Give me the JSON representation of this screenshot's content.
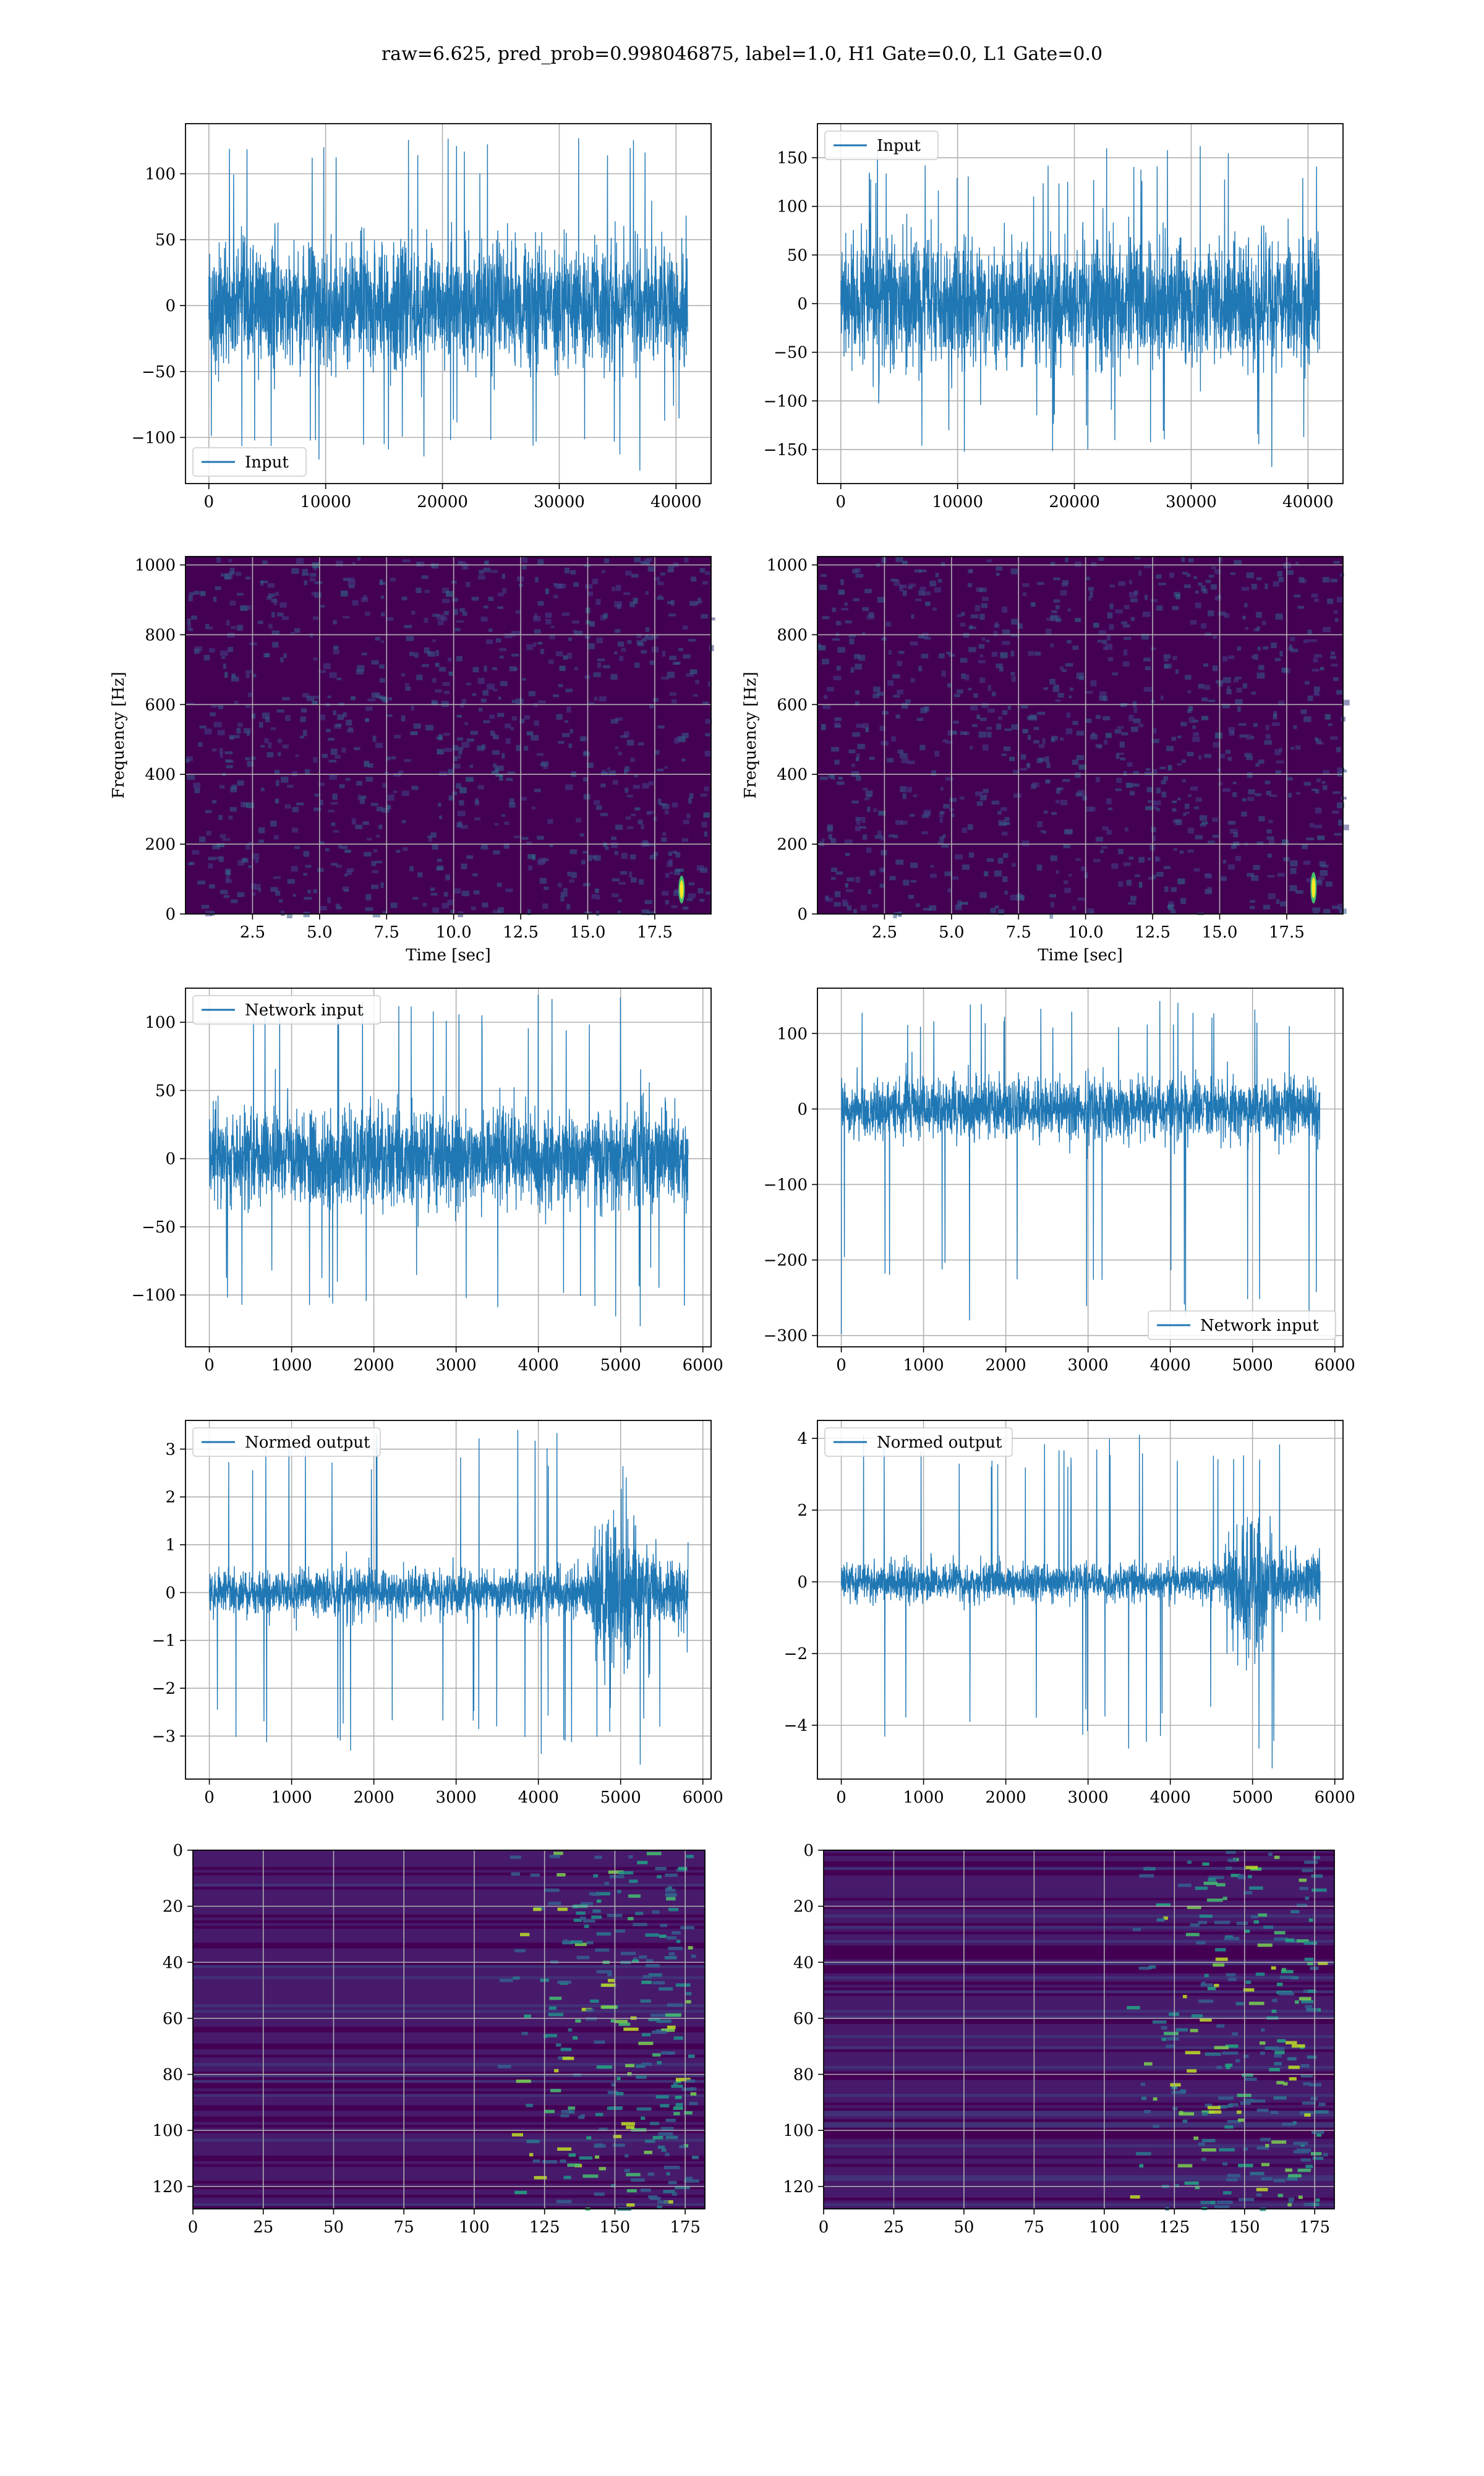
{
  "title": "raw=6.625, pred_prob=0.998046875, label=1.0, H1 Gate=0.0, L1 Gate=0.0",
  "colors": {
    "line": "#1f77b4",
    "grid": "#b0b0b0",
    "viridis_low": "#440154",
    "viridis_high": "#fde725"
  },
  "chart_data": [
    {
      "id": "row1-left",
      "type": "line",
      "series": [
        {
          "name": "Input"
        }
      ],
      "legend": "lower left",
      "xlim": [
        -2000,
        43000
      ],
      "xticks": [
        0,
        10000,
        20000,
        30000,
        40000
      ],
      "ylim": [
        -135,
        138
      ],
      "yticks": [
        -100,
        -50,
        0,
        50,
        100
      ],
      "x_range": [
        0,
        41000
      ],
      "core": 55,
      "peak_max": 127,
      "peak_min": -125,
      "grid": true
    },
    {
      "id": "row1-right",
      "type": "line",
      "series": [
        {
          "name": "Input"
        }
      ],
      "legend": "upper left",
      "xlim": [
        -2000,
        43000
      ],
      "xticks": [
        0,
        10000,
        20000,
        30000,
        40000
      ],
      "ylim": [
        -185,
        185
      ],
      "yticks": [
        -150,
        -100,
        -50,
        0,
        50,
        100,
        150
      ],
      "x_range": [
        0,
        41000
      ],
      "core": 75,
      "peak_max": 162,
      "peak_min": -168,
      "grid": true
    },
    {
      "id": "row2-left",
      "type": "heatmap",
      "xlabel": "Time [sec]",
      "ylabel": "Frequency [Hz]",
      "xlim": [
        0,
        19.6
      ],
      "xticks": [
        2.5,
        5.0,
        7.5,
        10.0,
        12.5,
        15.0,
        17.5
      ],
      "ylim": [
        0,
        1024
      ],
      "yticks": [
        0,
        200,
        400,
        600,
        800,
        1000
      ],
      "chirp": {
        "t": 18.5,
        "f_low": 30,
        "f_high": 110
      },
      "grid": true
    },
    {
      "id": "row2-right",
      "type": "heatmap",
      "xlabel": "Time [sec]",
      "ylabel": "Frequency [Hz]",
      "xlim": [
        0,
        19.6
      ],
      "xticks": [
        2.5,
        5.0,
        7.5,
        10.0,
        12.5,
        15.0,
        17.5
      ],
      "ylim": [
        0,
        1024
      ],
      "yticks": [
        0,
        200,
        400,
        600,
        800,
        1000
      ],
      "chirp": {
        "t": 18.5,
        "f_low": 30,
        "f_high": 120
      },
      "grid": true
    },
    {
      "id": "row3-left",
      "type": "line",
      "series": [
        {
          "name": "Network input"
        }
      ],
      "legend": "upper left",
      "xlim": [
        -290,
        6100
      ],
      "xticks": [
        0,
        1000,
        2000,
        3000,
        4000,
        5000,
        6000
      ],
      "ylim": [
        -138,
        125
      ],
      "yticks": [
        -100,
        -50,
        0,
        50,
        100
      ],
      "x_range": [
        0,
        5820
      ],
      "core": 40,
      "peak_max": 120,
      "peak_min": -123,
      "grid": true
    },
    {
      "id": "row3-right",
      "type": "line",
      "series": [
        {
          "name": "Network input"
        }
      ],
      "legend": "lower right",
      "xlim": [
        -290,
        6100
      ],
      "xticks": [
        0,
        1000,
        2000,
        3000,
        4000,
        5000,
        6000
      ],
      "ylim": [
        -315,
        160
      ],
      "yticks": [
        -300,
        -200,
        -100,
        0,
        100
      ],
      "x_range": [
        0,
        5820
      ],
      "core": 45,
      "peak_max": 143,
      "peak_min": -298,
      "grid": true
    },
    {
      "id": "row4-left",
      "type": "line",
      "series": [
        {
          "name": "Normed output"
        }
      ],
      "legend": "upper left",
      "xlim": [
        -290,
        6100
      ],
      "xticks": [
        0,
        1000,
        2000,
        3000,
        4000,
        5000,
        6000
      ],
      "ylim": [
        -3.9,
        3.6
      ],
      "yticks": [
        -3,
        -2,
        -1,
        0,
        1,
        2,
        3
      ],
      "x_range": [
        0,
        5820
      ],
      "core": 0.55,
      "peak_max": 3.4,
      "peak_min": -3.6,
      "grid": true
    },
    {
      "id": "row4-right",
      "type": "line",
      "series": [
        {
          "name": "Normed output"
        }
      ],
      "legend": "upper left",
      "xlim": [
        -290,
        6100
      ],
      "xticks": [
        0,
        1000,
        2000,
        3000,
        4000,
        5000,
        6000
      ],
      "ylim": [
        -5.5,
        4.5
      ],
      "yticks": [
        -4,
        -2,
        0,
        2,
        4
      ],
      "x_range": [
        0,
        5820
      ],
      "core": 0.6,
      "peak_max": 4.1,
      "peak_min": -5.2,
      "grid": true
    },
    {
      "id": "row5-left",
      "type": "heatmap",
      "xlim": [
        0,
        182
      ],
      "xticks": [
        0,
        25,
        50,
        75,
        100,
        125,
        150,
        175
      ],
      "ylim": [
        128,
        0
      ],
      "yticks": [
        0,
        20,
        40,
        60,
        80,
        100,
        120
      ],
      "grid": true
    },
    {
      "id": "row5-right",
      "type": "heatmap",
      "xlim": [
        0,
        182
      ],
      "xticks": [
        0,
        25,
        50,
        75,
        100,
        125,
        150,
        175
      ],
      "ylim": [
        128,
        0
      ],
      "yticks": [
        0,
        20,
        40,
        60,
        80,
        100,
        120
      ],
      "grid": true
    }
  ]
}
